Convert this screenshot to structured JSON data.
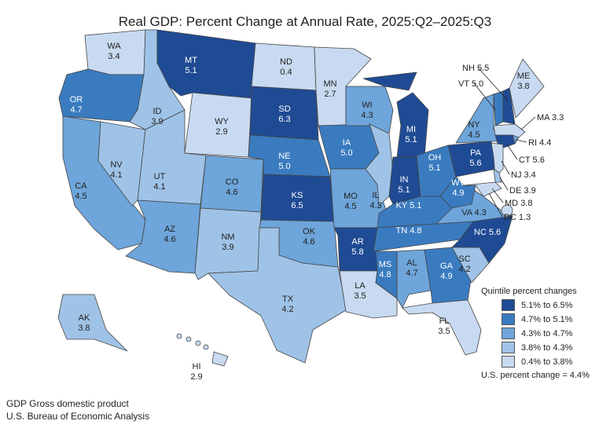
{
  "title": "Real GDP: Percent Change at Annual Rate, 2025:Q2–2025:Q3",
  "legend": {
    "title": "Quintile percent changes",
    "items": [
      {
        "label": "5.1% to 6.5%",
        "color": "#1f4b94"
      },
      {
        "label": "4.7% to 5.1%",
        "color": "#3a7bc0"
      },
      {
        "label": "4.3% to 4.7%",
        "color": "#6ea5da"
      },
      {
        "label": "3.8% to 4.3%",
        "color": "#9fc3e7"
      },
      {
        "label": "0.4% to 3.8%",
        "color": "#c8daf1"
      }
    ],
    "us_change": "U.S. percent change = 4.4%"
  },
  "states": [
    {
      "abbr": "WA",
      "value": "3.4",
      "quintile": 5
    },
    {
      "abbr": "OR",
      "value": "4.7",
      "quintile": 2
    },
    {
      "abbr": "CA",
      "value": "4.5",
      "quintile": 3
    },
    {
      "abbr": "NV",
      "value": "4.1",
      "quintile": 4
    },
    {
      "abbr": "ID",
      "value": "3.9",
      "quintile": 4
    },
    {
      "abbr": "MT",
      "value": "5.1",
      "quintile": 1
    },
    {
      "abbr": "WY",
      "value": "2.9",
      "quintile": 5
    },
    {
      "abbr": "UT",
      "value": "4.1",
      "quintile": 4
    },
    {
      "abbr": "AZ",
      "value": "4.6",
      "quintile": 3
    },
    {
      "abbr": "CO",
      "value": "4.6",
      "quintile": 3
    },
    {
      "abbr": "NM",
      "value": "3.9",
      "quintile": 4
    },
    {
      "abbr": "ND",
      "value": "0.4",
      "quintile": 5
    },
    {
      "abbr": "SD",
      "value": "6.3",
      "quintile": 1
    },
    {
      "abbr": "NE",
      "value": "5.0",
      "quintile": 2
    },
    {
      "abbr": "KS",
      "value": "6.5",
      "quintile": 1
    },
    {
      "abbr": "OK",
      "value": "4.6",
      "quintile": 3
    },
    {
      "abbr": "TX",
      "value": "4.2",
      "quintile": 4
    },
    {
      "abbr": "MN",
      "value": "2.7",
      "quintile": 5
    },
    {
      "abbr": "IA",
      "value": "5.0",
      "quintile": 2
    },
    {
      "abbr": "MO",
      "value": "4.5",
      "quintile": 3
    },
    {
      "abbr": "AR",
      "value": "5.8",
      "quintile": 1
    },
    {
      "abbr": "LA",
      "value": "3.5",
      "quintile": 5
    },
    {
      "abbr": "WI",
      "value": "4.3",
      "quintile": 3
    },
    {
      "abbr": "IL",
      "value": "4.3",
      "quintile": 4
    },
    {
      "abbr": "MI",
      "value": "5.1",
      "quintile": 1
    },
    {
      "abbr": "IN",
      "value": "5.1",
      "quintile": 1
    },
    {
      "abbr": "OH",
      "value": "5.1",
      "quintile": 2
    },
    {
      "abbr": "KY",
      "value": "5.1",
      "quintile": 2
    },
    {
      "abbr": "TN",
      "value": "4.8",
      "quintile": 2
    },
    {
      "abbr": "MS",
      "value": "4.8",
      "quintile": 2
    },
    {
      "abbr": "AL",
      "value": "4.7",
      "quintile": 3
    },
    {
      "abbr": "GA",
      "value": "4.9",
      "quintile": 2
    },
    {
      "abbr": "FL",
      "value": "3.5",
      "quintile": 5
    },
    {
      "abbr": "SC",
      "value": "4.2",
      "quintile": 4
    },
    {
      "abbr": "NC",
      "value": "5.6",
      "quintile": 1
    },
    {
      "abbr": "VA",
      "value": "4.3",
      "quintile": 3
    },
    {
      "abbr": "WV",
      "value": "4.9",
      "quintile": 2
    },
    {
      "abbr": "PA",
      "value": "5.6",
      "quintile": 1
    },
    {
      "abbr": "NY",
      "value": "4.5",
      "quintile": 3
    },
    {
      "abbr": "VT",
      "value": "5.0",
      "quintile": 2
    },
    {
      "abbr": "NH",
      "value": "5.5",
      "quintile": 1
    },
    {
      "abbr": "ME",
      "value": "3.8",
      "quintile": 5
    },
    {
      "abbr": "MA",
      "value": "3.3",
      "quintile": 5
    },
    {
      "abbr": "RI",
      "value": "4.4",
      "quintile": 3
    },
    {
      "abbr": "CT",
      "value": "5.6",
      "quintile": 1
    },
    {
      "abbr": "NJ",
      "value": "3.4",
      "quintile": 5
    },
    {
      "abbr": "DE",
      "value": "3.9",
      "quintile": 4
    },
    {
      "abbr": "MD",
      "value": "3.8",
      "quintile": 5
    },
    {
      "abbr": "DC",
      "value": "1.3",
      "quintile": 5
    },
    {
      "abbr": "AK",
      "value": "3.8",
      "quintile": 4
    },
    {
      "abbr": "HI",
      "value": "2.9",
      "quintile": 5
    }
  ],
  "footer": {
    "line1": "GDP Gross domestic product",
    "line2": "U.S. Bureau of Economic Analysis"
  }
}
